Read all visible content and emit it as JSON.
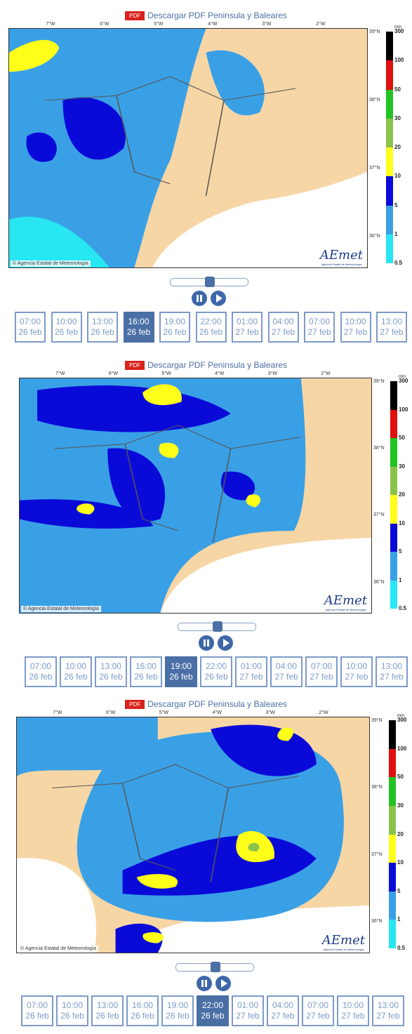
{
  "panels": [
    {
      "pdf_badge": "PDF",
      "pdf_link": "Descargar PDF Peninsula y Baleares",
      "longitudes": [
        "7°W",
        "6°W",
        "5°W",
        "4°W",
        "3°W",
        "2°W"
      ],
      "latitudes": [
        "39°N",
        "38°N",
        "37°N",
        "36°N"
      ],
      "legend_unit": "mm",
      "legend_levels": [
        "300",
        "100",
        "50",
        "30",
        "20",
        "10",
        "5",
        "1",
        "0.5"
      ],
      "copyright": "© Agencia Estatal de Meteorología",
      "logo": "AEmet",
      "logo_caption": "Agencia Estatal de Meteorología",
      "times": [
        {
          "time": "07:00",
          "date": "26 feb"
        },
        {
          "time": "10:00",
          "date": "26 feb"
        },
        {
          "time": "13:00",
          "date": "26 feb"
        },
        {
          "time": "16:00",
          "date": "26 feb"
        },
        {
          "time": "19:00",
          "date": "26 feb"
        },
        {
          "time": "22:00",
          "date": "26 feb"
        },
        {
          "time": "01:00",
          "date": "27 feb"
        },
        {
          "time": "04:00",
          "date": "27 feb"
        },
        {
          "time": "07:00",
          "date": "27 feb"
        },
        {
          "time": "10:00",
          "date": "27 feb"
        },
        {
          "time": "13:00",
          "date": "27 feb"
        }
      ],
      "active": 3
    },
    {
      "pdf_badge": "PDF",
      "pdf_link": "Descargar PDF Peninsula y Baleares",
      "longitudes": [
        "7°W",
        "6°W",
        "5°W",
        "4°W",
        "3°W",
        "2°W"
      ],
      "latitudes": [
        "39°N",
        "38°N",
        "37°N",
        "36°N"
      ],
      "legend_unit": "mm",
      "legend_levels": [
        "300",
        "100",
        "50",
        "30",
        "20",
        "10",
        "5",
        "1",
        "0.5"
      ],
      "copyright": "© Agencia Estatal de Meteorología",
      "logo": "AEmet",
      "logo_caption": "Agencia Estatal de Meteorología",
      "times": [
        {
          "time": "07:00",
          "date": "26 feb"
        },
        {
          "time": "10:00",
          "date": "26 feb"
        },
        {
          "time": "13:00",
          "date": "26 feb"
        },
        {
          "time": "16:00",
          "date": "26 feb"
        },
        {
          "time": "19:00",
          "date": "26 feb"
        },
        {
          "time": "22:00",
          "date": "26 feb"
        },
        {
          "time": "01:00",
          "date": "27 feb"
        },
        {
          "time": "04:00",
          "date": "27 feb"
        },
        {
          "time": "07:00",
          "date": "27 feb"
        },
        {
          "time": "10:00",
          "date": "27 feb"
        },
        {
          "time": "13:00",
          "date": "27 feb"
        }
      ],
      "active": 4
    },
    {
      "pdf_badge": "PDF",
      "pdf_link": "Descargar PDF Peninsula y Baleares",
      "longitudes": [
        "7°W",
        "6°W",
        "5°W",
        "4°W",
        "3°W",
        "2°W"
      ],
      "latitudes": [
        "39°N",
        "38°N",
        "37°N",
        "36°N"
      ],
      "legend_unit": "mm",
      "legend_levels": [
        "300",
        "100",
        "50",
        "30",
        "20",
        "10",
        "5",
        "1",
        "0.5"
      ],
      "copyright": "© Agencia Estatal de Meteorología",
      "logo": "AEmet",
      "logo_caption": "Agencia Estatal de Meteorología",
      "times": [
        {
          "time": "07:00",
          "date": "26 feb"
        },
        {
          "time": "10:00",
          "date": "26 feb"
        },
        {
          "time": "13:00",
          "date": "26 feb"
        },
        {
          "time": "16:00",
          "date": "26 feb"
        },
        {
          "time": "19:00",
          "date": "26 feb"
        },
        {
          "time": "22:00",
          "date": "26 feb"
        },
        {
          "time": "01:00",
          "date": "27 feb"
        },
        {
          "time": "04:00",
          "date": "27 feb"
        },
        {
          "time": "07:00",
          "date": "27 feb"
        },
        {
          "time": "10:00",
          "date": "27 feb"
        },
        {
          "time": "13:00",
          "date": "27 feb"
        }
      ],
      "active": 5
    }
  ]
}
